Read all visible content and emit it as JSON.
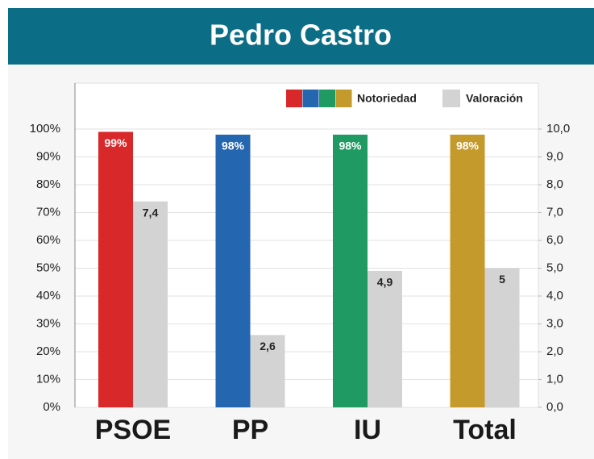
{
  "chart_data": {
    "type": "bar",
    "title": "Pedro Castro",
    "categories": [
      "PSOE",
      "PP",
      "IU",
      "Total"
    ],
    "series": [
      {
        "name": "Notoriedad",
        "colors": [
          "#d9282a",
          "#2566b0",
          "#1f9a63",
          "#c49a2c"
        ],
        "values": [
          99,
          98,
          98,
          98
        ],
        "value_labels": [
          "99%",
          "98%",
          "98%",
          "98%"
        ]
      },
      {
        "name": "Valoración",
        "color": "#d3d3d3",
        "axis": "y2",
        "values": [
          7.4,
          2.6,
          4.9,
          5
        ],
        "value_labels": [
          "7,4",
          "2,6",
          "4,9",
          "5"
        ]
      }
    ],
    "ylim": [
      0,
      100
    ],
    "yticks": [
      {
        "value": 0,
        "label": "0%"
      },
      {
        "value": 10,
        "label": "10%"
      },
      {
        "value": 20,
        "label": "20%"
      },
      {
        "value": 30,
        "label": "30%"
      },
      {
        "value": 40,
        "label": "40%"
      },
      {
        "value": 50,
        "label": "50%"
      },
      {
        "value": 60,
        "label": "60%"
      },
      {
        "value": 70,
        "label": "70%"
      },
      {
        "value": 80,
        "label": "80%"
      },
      {
        "value": 90,
        "label": "90%"
      },
      {
        "value": 100,
        "label": "100%"
      }
    ],
    "y2lim": [
      0,
      10
    ],
    "y2ticks": [
      {
        "value": 0,
        "label": "0,0"
      },
      {
        "value": 1,
        "label": "1,0"
      },
      {
        "value": 2,
        "label": "2,0"
      },
      {
        "value": 3,
        "label": "3,0"
      },
      {
        "value": 4,
        "label": "4,0"
      },
      {
        "value": 5,
        "label": "5,0"
      },
      {
        "value": 6,
        "label": "6,0"
      },
      {
        "value": 7,
        "label": "7,0"
      },
      {
        "value": 8,
        "label": "8,0"
      },
      {
        "value": 9,
        "label": "9,0"
      },
      {
        "value": 10,
        "label": "10,0"
      }
    ],
    "grid": true,
    "legend": "top-right"
  }
}
